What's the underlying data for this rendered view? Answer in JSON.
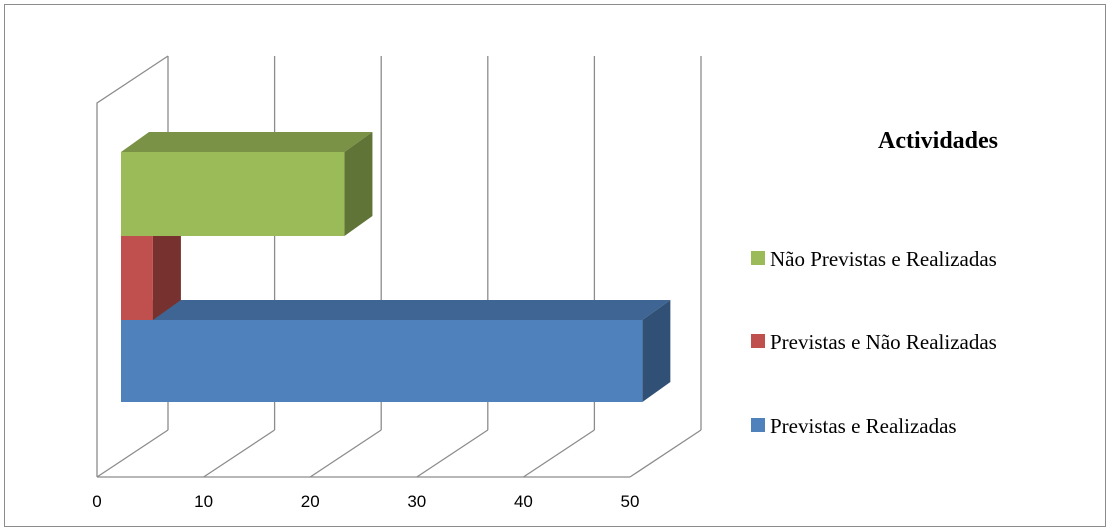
{
  "chart_data": {
    "type": "bar",
    "orientation": "horizontal",
    "style": "3d",
    "legend_title": "Actividades",
    "legend_position": "right",
    "series": [
      {
        "name": "Previstas e Realizadas",
        "value": 49,
        "color": "#4f81bd"
      },
      {
        "name": "Previstas e Não Realizadas",
        "value": 3,
        "color": "#c0504d"
      },
      {
        "name": "Não Previstas e Realizadas",
        "value": 21,
        "color": "#9bbb59"
      }
    ],
    "xlim": [
      0,
      50
    ],
    "ticks": [
      "0",
      "10",
      "20",
      "30",
      "40",
      "50"
    ],
    "grid": true
  }
}
